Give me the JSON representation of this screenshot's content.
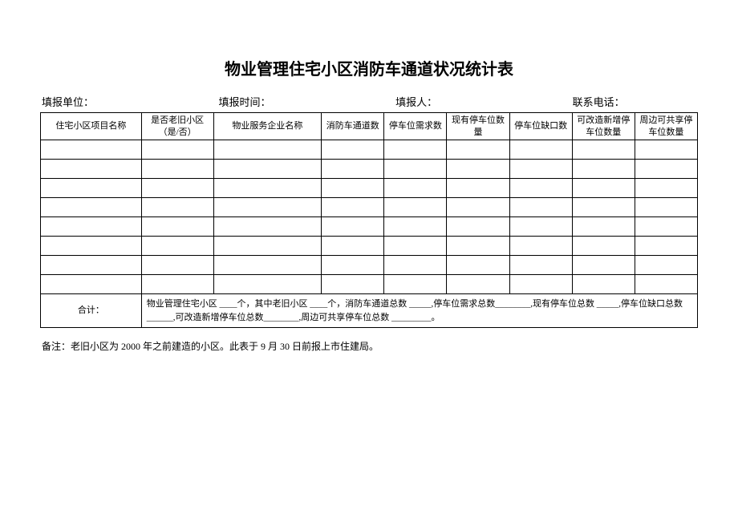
{
  "title": "物业管理住宅小区消防车通道状况统计表",
  "header": {
    "unit_label": "填报单位：",
    "time_label": "填报时间：",
    "person_label": "填报人：",
    "phone_label": "联系电话："
  },
  "table": {
    "columns": [
      "住宅小区项目名称",
      "是否老旧小区（是/否）",
      "物业服务企业名称",
      "消防车通道数",
      "停车位需求数",
      "现有停车位数量",
      "停车位缺口数",
      "可改造新增停车位数量",
      "周边可共享停车位数量"
    ],
    "data_row_count": 8,
    "summary_label": "合计：",
    "summary_text": "物业管理住宅小区 ____个，其中老旧小区 ____个，消防车通道总数 _____,停车位需求总数________,现有停车位总数 _____,停车位缺口总数 ______,可改造新增停车位总数________,周边可共享停车位总数 _________。"
  },
  "footnote": "备注：老旧小区为 2000 年之前建造的小区。此表于 9 月 30 日前报上市住建局。"
}
